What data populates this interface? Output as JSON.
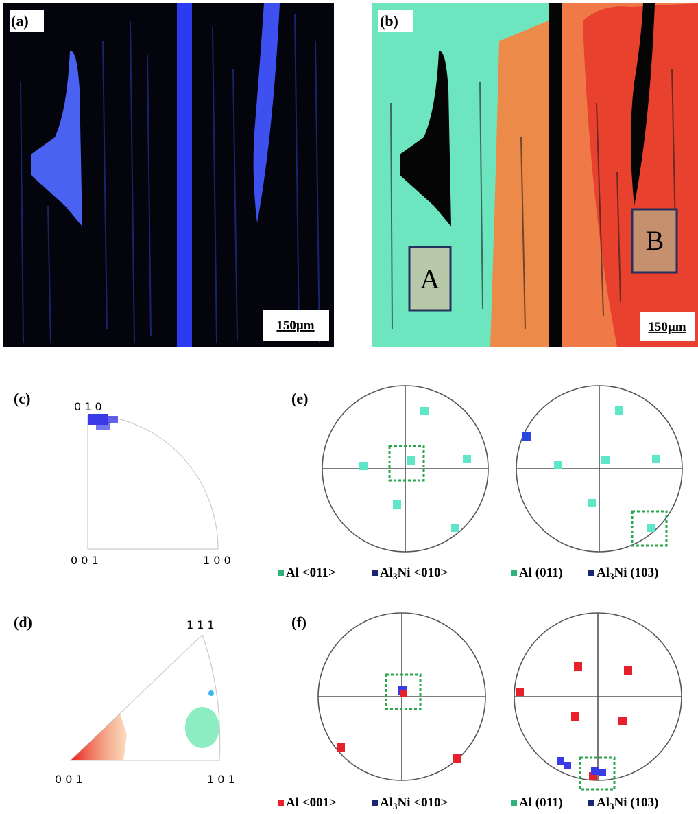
{
  "panels": {
    "a": {
      "label": "(a)",
      "scale_bar": "150µm"
    },
    "b": {
      "label": "(b)",
      "scale_bar": "150µm",
      "regions": [
        "A",
        "B"
      ]
    },
    "c": {
      "label": "(c)",
      "corners": [
        "0 1 0",
        "0 0 1",
        "1 0 0"
      ]
    },
    "d": {
      "label": "(d)",
      "corners": [
        "1 1 1",
        "0 0 1",
        "1 0 1"
      ]
    },
    "e": {
      "label": "(e)",
      "legend": [
        {
          "color": "#2db37a",
          "label": "Al <011>"
        },
        {
          "color": "#1b2670",
          "label": "Al",
          "sub": "3",
          "label_end": "Ni <010>"
        },
        {
          "color": "#2db37a",
          "label": "Al (011)"
        },
        {
          "color": "#1b2670",
          "label": "Al",
          "sub": "3",
          "label_end": "Ni (103)"
        }
      ]
    },
    "f": {
      "label": "(f)",
      "legend": [
        {
          "color": "#e8202a",
          "label": "Al <001>"
        },
        {
          "color": "#1b2670",
          "label": "Al",
          "sub": "3",
          "label_end": "Ni <010>"
        },
        {
          "color": "#2db37a",
          "label": "Al (011)"
        },
        {
          "color": "#1b2670",
          "label": "Al",
          "sub": "3",
          "label_end": "Ni (103)"
        }
      ]
    }
  }
}
